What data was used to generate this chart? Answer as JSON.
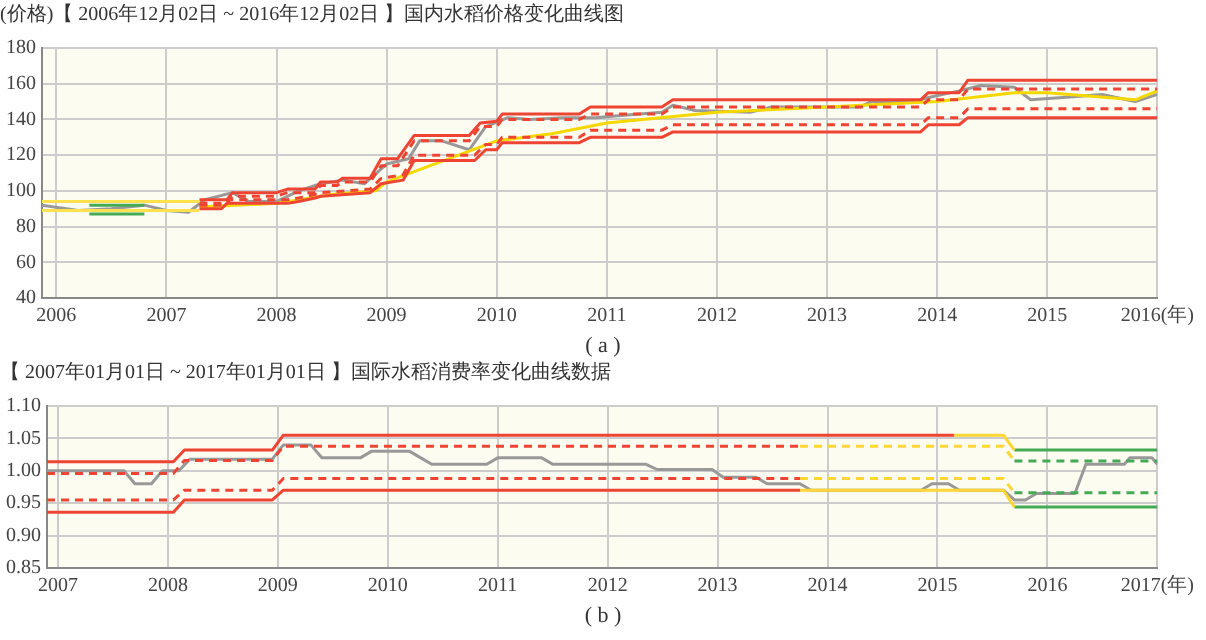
{
  "chart_data": [
    {
      "type": "line",
      "title": "【 2006年12月02日 ~ 2016年12月02日 】国内水稻价格变化曲线图",
      "ylabel": "(价格)",
      "annotations": [
        "( a )"
      ],
      "xlim": [
        2005.87,
        2016
      ],
      "xticks": [
        2006,
        2007,
        2008,
        2009,
        2010,
        2011,
        2012,
        2013,
        2014,
        2015,
        {
          "value": 2016,
          "label": "2016(年)"
        }
      ],
      "ylim": [
        40,
        180
      ],
      "yticks": [
        40,
        60,
        80,
        100,
        120,
        140,
        160,
        180
      ],
      "grid": true,
      "legend": false,
      "marker": "none",
      "series": [
        {
          "color": "#ffe14d",
          "line_style": "solid",
          "x": [
            2005.87,
            2007.3
          ],
          "values": [
            94,
            94
          ]
        },
        {
          "color": "#ffe14d",
          "line_style": "solid",
          "x": [
            2005.87,
            2007.3
          ],
          "values": [
            89,
            89
          ]
        },
        {
          "color": "#44aa55",
          "line_style": "solid",
          "x": [
            2006.3,
            2006.8
          ],
          "values": [
            92,
            92
          ]
        },
        {
          "color": "#44aa55",
          "line_style": "solid",
          "x": [
            2006.3,
            2006.8
          ],
          "values": [
            87,
            87
          ]
        },
        {
          "color": "#ee4433",
          "line_style": "solid",
          "x": [
            2007.3,
            2007.55,
            2007.6,
            2008.0,
            2008.1,
            2008.35,
            2008.4,
            2008.55,
            2008.6,
            2008.85,
            2008.95,
            2009.1,
            2009.25,
            2009.75,
            2009.85,
            2010.0,
            2010.05,
            2010.75,
            2010.85,
            2011.5,
            2011.6,
            2013.85,
            2013.92,
            2014.2,
            2014.28,
            2016.0
          ],
          "values": [
            95,
            95,
            99,
            99,
            101,
            101,
            105,
            105,
            107,
            107,
            118,
            118,
            131,
            131,
            138,
            139,
            143,
            143,
            147,
            147,
            151,
            151,
            155,
            155,
            162,
            162
          ]
        },
        {
          "color": "#ee4433",
          "line_style": "dashed",
          "x": [
            2007.3,
            2007.55,
            2007.6,
            2008.0,
            2008.1,
            2008.35,
            2008.4,
            2008.55,
            2008.6,
            2008.85,
            2008.95,
            2009.1,
            2009.25,
            2009.75,
            2009.85,
            2010.0,
            2010.05,
            2010.75,
            2010.85,
            2011.5,
            2011.6,
            2013.85,
            2013.92,
            2014.2,
            2014.28,
            2016.0
          ],
          "values": [
            93,
            93,
            97,
            97,
            99,
            99,
            103,
            103,
            105,
            105,
            114,
            114,
            128,
            128,
            136,
            136,
            140,
            140,
            143,
            143,
            147,
            147,
            151,
            151,
            157,
            157
          ]
        },
        {
          "color": "#ee4433",
          "line_style": "dashed",
          "x": [
            2007.3,
            2007.5,
            2007.55,
            2008.1,
            2008.2,
            2008.35,
            2008.4,
            2008.85,
            2008.95,
            2009.15,
            2009.25,
            2009.8,
            2009.9,
            2010.0,
            2010.05,
            2010.75,
            2010.85,
            2011.5,
            2011.6,
            2013.85,
            2013.92,
            2014.2,
            2014.28,
            2016.0
          ],
          "values": [
            92,
            92,
            95,
            95,
            96,
            98,
            99,
            101,
            107,
            109,
            120,
            120,
            126,
            126,
            130,
            130,
            134,
            134,
            137,
            137,
            141,
            141,
            146,
            146
          ]
        },
        {
          "color": "#ee4433",
          "line_style": "solid",
          "x": [
            2007.3,
            2007.5,
            2007.55,
            2008.1,
            2008.2,
            2008.35,
            2008.4,
            2008.85,
            2008.95,
            2009.15,
            2009.25,
            2009.8,
            2009.9,
            2010.0,
            2010.05,
            2010.75,
            2010.85,
            2011.5,
            2011.6,
            2013.85,
            2013.92,
            2014.2,
            2014.28,
            2016.0
          ],
          "values": [
            90,
            90,
            93,
            93,
            94,
            96,
            97,
            99,
            104,
            106,
            117,
            117,
            123,
            123,
            127,
            127,
            130,
            130,
            133,
            133,
            137,
            137,
            141,
            141
          ]
        },
        {
          "color": "#f5d800",
          "line_style": "solid",
          "x": [
            2007.3,
            2008.0,
            2008.5,
            2008.9,
            2009.0,
            2010.0,
            2010.5,
            2011.0,
            2012.0,
            2013.0,
            2014.0,
            2014.7,
            2015.0,
            2015.8,
            2016.0
          ],
          "values": [
            91,
            93,
            98,
            100,
            105,
            128,
            132,
            138,
            144,
            147,
            150,
            155,
            155,
            151,
            156
          ]
        },
        {
          "color": "#999999",
          "line_style": "solid",
          "x": [
            2005.87,
            2006.2,
            2006.5,
            2006.8,
            2007.0,
            2007.2,
            2007.35,
            2007.6,
            2007.75,
            2008.0,
            2008.2,
            2008.4,
            2008.6,
            2008.8,
            2009.0,
            2009.2,
            2009.3,
            2009.5,
            2009.75,
            2009.9,
            2010.1,
            2010.3,
            2010.6,
            2010.9,
            2011.1,
            2011.5,
            2011.6,
            2011.8,
            2012.3,
            2012.5,
            2012.8,
            2013.3,
            2013.4,
            2013.8,
            2013.9,
            2014.2,
            2014.4,
            2014.7,
            2014.85,
            2015.3,
            2015.5,
            2015.8,
            2016.0
          ],
          "values": [
            92,
            89,
            90,
            92,
            89,
            88,
            95,
            99,
            94,
            94,
            100,
            104,
            106,
            104,
            115,
            118,
            128,
            128,
            123,
            136,
            141,
            140,
            141,
            141,
            142,
            144,
            148,
            145,
            144,
            147,
            147,
            147,
            150,
            150,
            152,
            156,
            159,
            158,
            151,
            153,
            154,
            150,
            154
          ]
        }
      ]
    },
    {
      "type": "line",
      "title": "【 2007年01月01日 ~ 2017年01月01日 】国际水稻消费率变化曲线数据",
      "annotations": [
        "( b )"
      ],
      "xlim": [
        2006.9,
        2017
      ],
      "xticks": [
        2007,
        2008,
        2009,
        2010,
        2011,
        2012,
        2013,
        2014,
        2015,
        2016,
        {
          "value": 2017,
          "label": "2017(年)"
        }
      ],
      "ylim": [
        0.85,
        1.1
      ],
      "yticks": [
        0.85,
        {
          "value": 0.9,
          "label": "0.90"
        },
        0.95,
        {
          "value": 1,
          "label": "1.00"
        },
        1.05,
        {
          "value": 1.1,
          "label": "1.10"
        }
      ],
      "grid": true,
      "legend": false,
      "marker": "none",
      "series": [
        {
          "color": "#ee4433",
          "line_style": "solid",
          "x": [
            2006.9,
            2008.05,
            2008.15,
            2008.95,
            2009.05,
            2015.15
          ],
          "values": [
            1.014,
            1.014,
            1.032,
            1.032,
            1.055,
            1.055
          ]
        },
        {
          "color": "#ffd633",
          "line_style": "solid",
          "x": [
            2015.15,
            2015.6,
            2015.7
          ],
          "values": [
            1.055,
            1.055,
            1.032
          ]
        },
        {
          "color": "#44aa55",
          "line_style": "solid",
          "x": [
            2015.7,
            2017
          ],
          "values": [
            1.032,
            1.032
          ]
        },
        {
          "color": "#ee4433",
          "line_style": "dashed",
          "x": [
            2006.9,
            2008.05,
            2008.15,
            2008.95,
            2009.05,
            2013.75
          ],
          "values": [
            0.996,
            0.996,
            1.016,
            1.016,
            1.038,
            1.038
          ]
        },
        {
          "color": "#ffd633",
          "line_style": "dashed",
          "x": [
            2013.75,
            2015.6,
            2015.7
          ],
          "values": [
            1.038,
            1.038,
            1.015
          ]
        },
        {
          "color": "#44aa55",
          "line_style": "dashed",
          "x": [
            2015.7,
            2017
          ],
          "values": [
            1.015,
            1.015
          ]
        },
        {
          "color": "#ee4433",
          "line_style": "dashed",
          "x": [
            2006.9,
            2008.05,
            2008.15,
            2008.95,
            2009.05,
            2013.75
          ],
          "values": [
            0.955,
            0.955,
            0.97,
            0.97,
            0.988,
            0.988
          ]
        },
        {
          "color": "#ffd633",
          "line_style": "dashed",
          "x": [
            2013.75,
            2015.6,
            2015.7
          ],
          "values": [
            0.988,
            0.988,
            0.966
          ]
        },
        {
          "color": "#44aa55",
          "line_style": "dashed",
          "x": [
            2015.7,
            2017
          ],
          "values": [
            0.966,
            0.966
          ]
        },
        {
          "color": "#ee4433",
          "line_style": "solid",
          "x": [
            2006.9,
            2008.05,
            2008.15,
            2008.95,
            2009.05,
            2013.75
          ],
          "values": [
            0.936,
            0.936,
            0.955,
            0.955,
            0.97,
            0.97
          ]
        },
        {
          "color": "#ffd633",
          "line_style": "solid",
          "x": [
            2013.75,
            2015.6,
            2015.7
          ],
          "values": [
            0.97,
            0.97,
            0.944
          ]
        },
        {
          "color": "#44aa55",
          "line_style": "solid",
          "x": [
            2015.7,
            2017
          ],
          "values": [
            0.944,
            0.944
          ]
        },
        {
          "color": "#999999",
          "line_style": "solid",
          "x": [
            2006.9,
            2007.6,
            2007.7,
            2007.85,
            2007.95,
            2008.1,
            2008.2,
            2008.95,
            2009.05,
            2009.3,
            2009.4,
            2009.75,
            2009.85,
            2010.2,
            2010.3,
            2010.4,
            2010.9,
            2011.0,
            2011.4,
            2011.5,
            2012.35,
            2012.45,
            2012.95,
            2013.05,
            2013.35,
            2013.45,
            2013.75,
            2013.85,
            2014.85,
            2014.95,
            2015.1,
            2015.2,
            2015.6,
            2015.7,
            2015.8,
            2015.9,
            2016.25,
            2016.35,
            2016.7,
            2016.75,
            2016.95,
            2017.0
          ],
          "values": [
            1.0,
            1.0,
            0.98,
            0.98,
            1.0,
            1.0,
            1.018,
            1.018,
            1.04,
            1.04,
            1.02,
            1.02,
            1.03,
            1.03,
            1.02,
            1.01,
            1.01,
            1.02,
            1.02,
            1.01,
            1.01,
            1.002,
            1.002,
            0.99,
            0.99,
            0.98,
            0.98,
            0.97,
            0.97,
            0.98,
            0.98,
            0.97,
            0.97,
            0.955,
            0.955,
            0.965,
            0.965,
            1.01,
            1.01,
            1.02,
            1.02,
            1.01
          ]
        }
      ]
    }
  ]
}
